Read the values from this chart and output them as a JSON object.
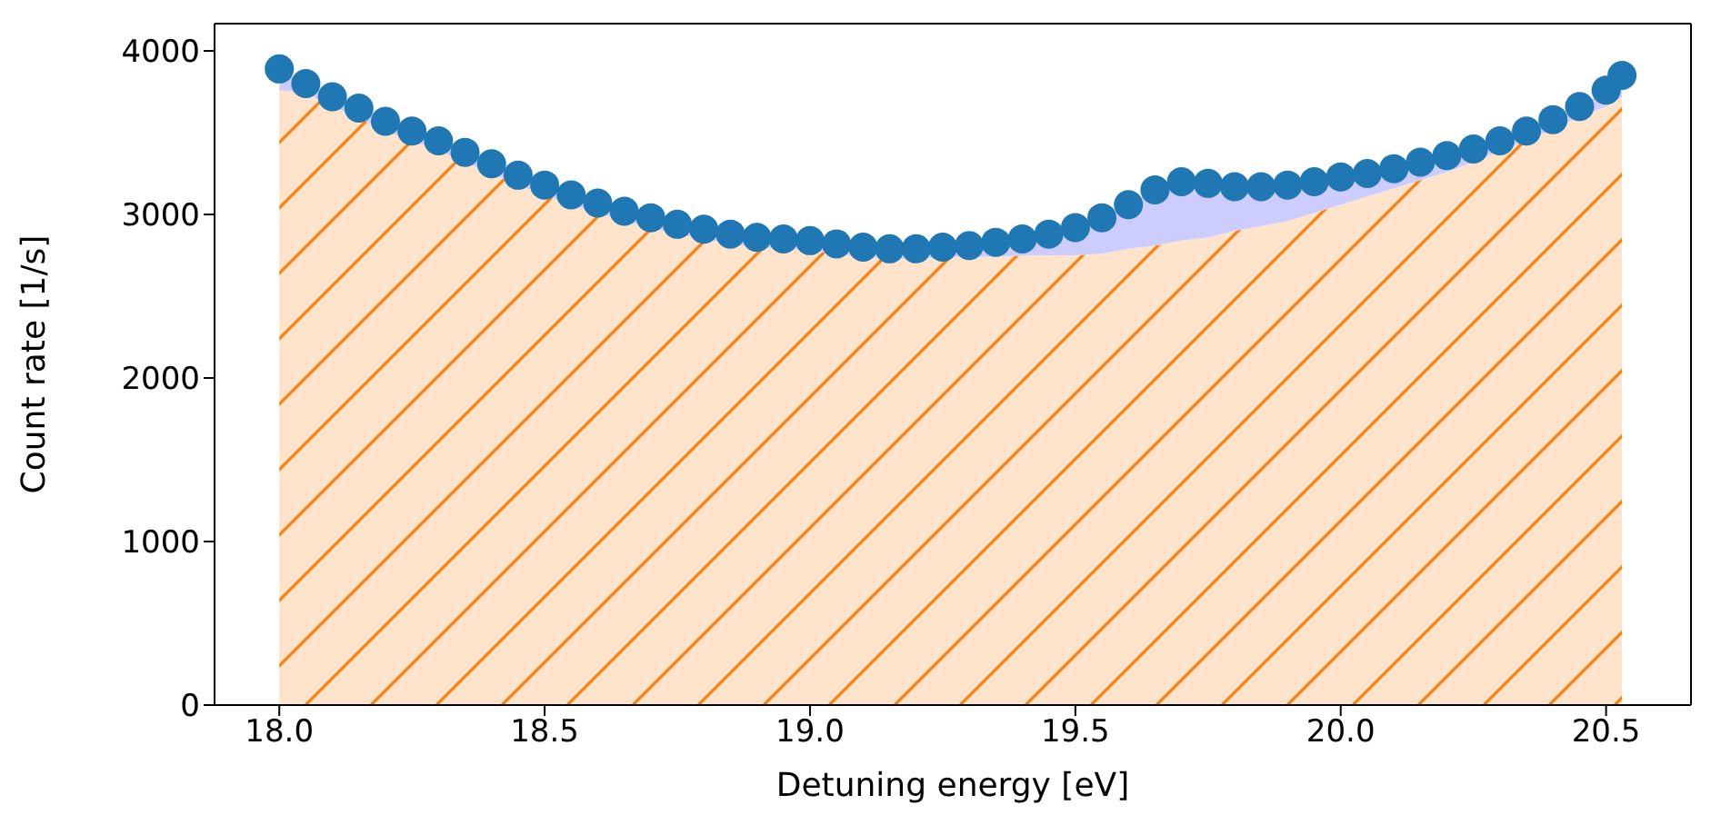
{
  "chart_data": {
    "type": "scatter",
    "xlabel": "Detuning energy [eV]",
    "ylabel": "Count rate [1/s]",
    "x": [
      18.0,
      18.05,
      18.1,
      18.15,
      18.2,
      18.25,
      18.3,
      18.35,
      18.4,
      18.45,
      18.5,
      18.55,
      18.6,
      18.65,
      18.7,
      18.75,
      18.8,
      18.85,
      18.9,
      18.95,
      19.0,
      19.05,
      19.1,
      19.15,
      19.2,
      19.25,
      19.3,
      19.35,
      19.4,
      19.45,
      19.5,
      19.55,
      19.6,
      19.65,
      19.7,
      19.75,
      19.8,
      19.85,
      19.9,
      19.95,
      20.0,
      20.05,
      20.1,
      20.15,
      20.2,
      20.25,
      20.3,
      20.35,
      20.4,
      20.45,
      20.5,
      20.53
    ],
    "stacked": true,
    "series": [
      {
        "type": "area",
        "color": "#ff7f0e",
        "values": [
          3760,
          3740,
          3660,
          3590,
          3510,
          3450,
          3390,
          3320,
          3250,
          3180,
          3120,
          3060,
          3010,
          2960,
          2920,
          2880,
          2850,
          2820,
          2800,
          2790,
          2780,
          2760,
          2740,
          2730,
          2730,
          2740,
          2740,
          2740,
          2750,
          2750,
          2750,
          2760,
          2790,
          2810,
          2840,
          2860,
          2900,
          2930,
          2960,
          3010,
          3060,
          3110,
          3160,
          3210,
          3260,
          3320,
          3390,
          3450,
          3520,
          3600,
          3660,
          3720
        ]
      },
      {
        "type": "area",
        "color": "#ccccff",
        "values": [
          130,
          60,
          60,
          60,
          60,
          60,
          60,
          60,
          60,
          60,
          60,
          60,
          60,
          60,
          60,
          60,
          60,
          60,
          60,
          60,
          60,
          60,
          60,
          60,
          60,
          60,
          70,
          90,
          100,
          130,
          170,
          220,
          270,
          340,
          360,
          330,
          270,
          240,
          220,
          190,
          170,
          140,
          120,
          110,
          100,
          80,
          60,
          60,
          60,
          60,
          100,
          130
        ]
      },
      {
        "color": "#1f77b4",
        "marker": "circle",
        "values": [
          3890,
          3800,
          3720,
          3650,
          3570,
          3510,
          3450,
          3380,
          3310,
          3240,
          3180,
          3120,
          3070,
          3020,
          2980,
          2940,
          2910,
          2880,
          2860,
          2850,
          2840,
          2820,
          2800,
          2790,
          2790,
          2800,
          2810,
          2830,
          2850,
          2880,
          2920,
          2980,
          3060,
          3150,
          3200,
          3190,
          3170,
          3170,
          3180,
          3200,
          3230,
          3250,
          3280,
          3320,
          3360,
          3400,
          3450,
          3510,
          3580,
          3660,
          3760,
          3850
        ]
      }
    ],
    "xlim": [
      17.878,
      20.66
    ],
    "ylim": [
      0,
      4167
    ],
    "xticks": [
      {
        "value": 18,
        "label": "18.0"
      },
      {
        "value": 18.5,
        "label": "18.5"
      },
      {
        "value": 19,
        "label": "19.0"
      },
      {
        "value": 19.5,
        "label": "19.5"
      },
      {
        "value": 20,
        "label": "20.0"
      },
      {
        "value": 20.5,
        "label": "20.5"
      }
    ],
    "yticks": [
      0,
      1000,
      2000,
      3000,
      4000
    ]
  }
}
